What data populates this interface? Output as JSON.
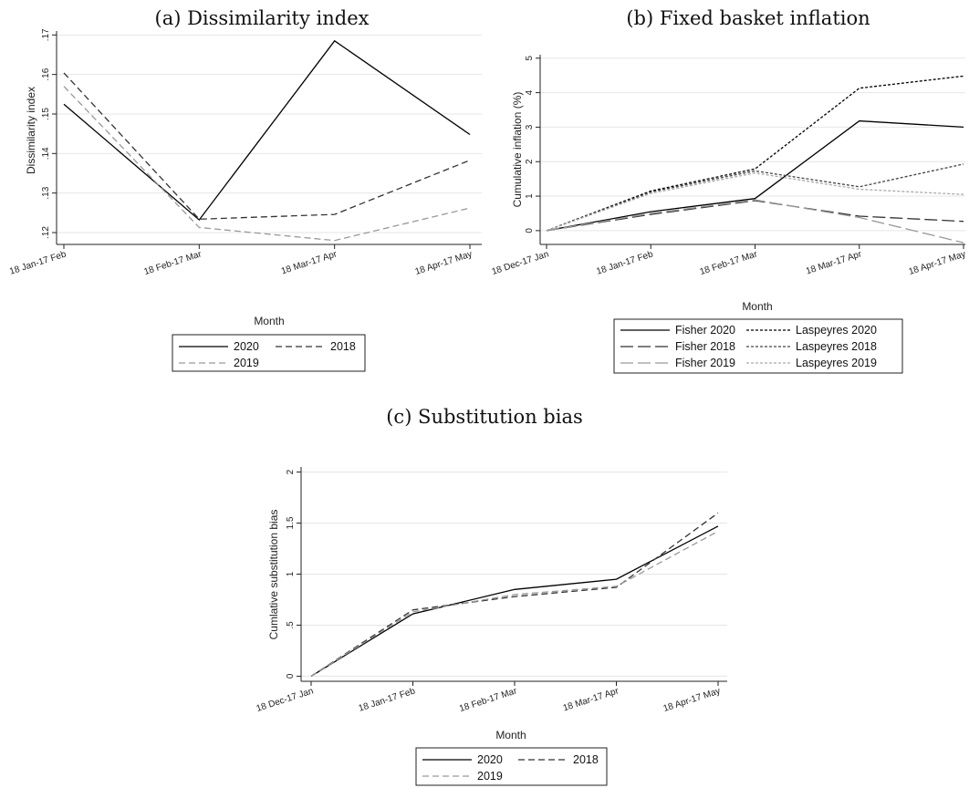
{
  "chart_data": [
    {
      "type": "line",
      "title": "(a) Dissimilarity index",
      "xlabel": "Month",
      "ylabel": "Dissimilarity index",
      "categories": [
        "18 Jan-17 Feb",
        "18 Feb-17 Mar",
        "18 Mar-17 Apr",
        "18 Apr-17 May"
      ],
      "ylim": [
        0.117,
        0.171
      ],
      "yticks": [
        0.12,
        0.13,
        0.14,
        0.15,
        0.16,
        0.17
      ],
      "ytick_labels": [
        ".12",
        ".13",
        ".14",
        ".15",
        ".16",
        ".17"
      ],
      "series": [
        {
          "name": "2020",
          "values": [
            0.1525,
            0.1232,
            0.1685,
            0.1448
          ],
          "color": "#000000",
          "dash": "solid"
        },
        {
          "name": "2018",
          "values": [
            0.1604,
            0.1234,
            0.1246,
            0.1383
          ],
          "color": "#333333",
          "dash": "dash"
        },
        {
          "name": "2019",
          "values": [
            0.157,
            0.1213,
            0.118,
            0.1262
          ],
          "color": "#999999",
          "dash": "dash"
        }
      ],
      "legend": {
        "placement": "bottom",
        "columns": 2
      }
    },
    {
      "type": "line",
      "title": "(b) Fixed basket inflation",
      "xlabel": "Month",
      "ylabel": "Cumulative inflation (%)",
      "categories": [
        "18 Dec-17 Jan",
        "18 Jan-17 Feb",
        "18 Feb-17 Mar",
        "18 Mar-17 Apr",
        "18 Apr-17 May"
      ],
      "ylim": [
        -0.4,
        5.1
      ],
      "yticks": [
        0,
        1,
        2,
        3,
        4,
        5
      ],
      "ytick_labels": [
        "0",
        "1",
        "2",
        "3",
        "4",
        "5"
      ],
      "series": [
        {
          "name": "Fisher 2020",
          "values": [
            0,
            0.55,
            0.93,
            3.18,
            3.0
          ],
          "color": "#000000",
          "dash": "solid"
        },
        {
          "name": "Fisher 2018",
          "values": [
            0,
            0.47,
            0.87,
            0.42,
            0.27
          ],
          "color": "#333333",
          "dash": "longdash"
        },
        {
          "name": "Fisher 2019",
          "values": [
            0,
            0.5,
            0.89,
            0.38,
            -0.35
          ],
          "color": "#999999",
          "dash": "longdash"
        },
        {
          "name": "Laspeyres 2020",
          "values": [
            0,
            1.15,
            1.79,
            4.13,
            4.48
          ],
          "color": "#000000",
          "dash": "shortdash"
        },
        {
          "name": "Laspeyres 2018",
          "values": [
            0,
            1.12,
            1.73,
            1.27,
            1.93
          ],
          "color": "#444444",
          "dash": "shortdash"
        },
        {
          "name": "Laspeyres 2019",
          "values": [
            0,
            1.08,
            1.67,
            1.2,
            1.05
          ],
          "color": "#aaaaaa",
          "dash": "shortdash"
        }
      ],
      "legend": {
        "placement": "bottom",
        "columns": 2
      }
    },
    {
      "type": "line",
      "title": "(c) Substitution bias",
      "xlabel": "Month",
      "ylabel": "Cumlative substitution bias",
      "categories": [
        "18 Dec-17 Jan",
        "18 Jan-17 Feb",
        "18 Feb-17 Mar",
        "18 Mar-17 Apr",
        "18 Apr-17 May"
      ],
      "ylim": [
        -0.05,
        2.05
      ],
      "yticks": [
        0,
        0.5,
        1,
        1.5,
        2
      ],
      "ytick_labels": [
        "0",
        ".5",
        "1",
        "1.5",
        "2"
      ],
      "series": [
        {
          "name": "2020",
          "values": [
            0,
            0.61,
            0.85,
            0.95,
            1.47
          ],
          "color": "#000000",
          "dash": "solid"
        },
        {
          "name": "2018",
          "values": [
            0,
            0.65,
            0.78,
            0.87,
            1.6
          ],
          "color": "#333333",
          "dash": "dash"
        },
        {
          "name": "2019",
          "values": [
            0,
            0.63,
            0.8,
            0.88,
            1.42
          ],
          "color": "#999999",
          "dash": "dash"
        }
      ],
      "legend": {
        "placement": "bottom",
        "columns": 2
      }
    }
  ]
}
